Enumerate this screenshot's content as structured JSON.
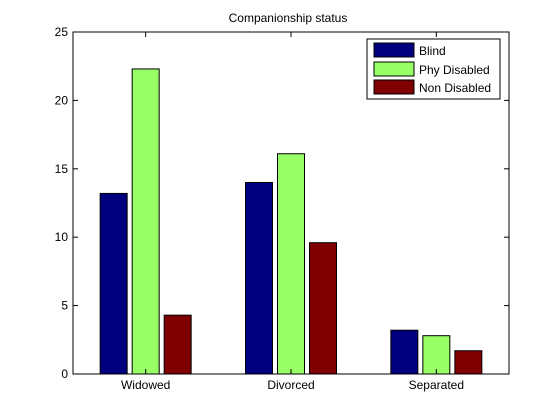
{
  "chart_data": {
    "type": "bar",
    "title": "Companionship status",
    "xlabel": "",
    "ylabel": "",
    "categories": [
      "Widowed",
      "Divorced",
      "Separated"
    ],
    "series": [
      {
        "name": "Blind",
        "values": [
          13.2,
          14.0,
          3.2
        ],
        "color": "#00007f"
      },
      {
        "name": "Phy Disabled",
        "values": [
          22.3,
          16.1,
          2.8
        ],
        "color": "#99ff66"
      },
      {
        "name": "Non Disabled",
        "values": [
          4.3,
          9.6,
          1.7
        ],
        "color": "#7f0000"
      }
    ],
    "ylim": [
      0,
      25
    ],
    "yticks": [
      0,
      5,
      10,
      15,
      20,
      25
    ],
    "ytick_labels": [
      "0",
      "5",
      "10",
      "15",
      "20",
      "25"
    ],
    "grid": false,
    "legend_position": "top-right"
  }
}
